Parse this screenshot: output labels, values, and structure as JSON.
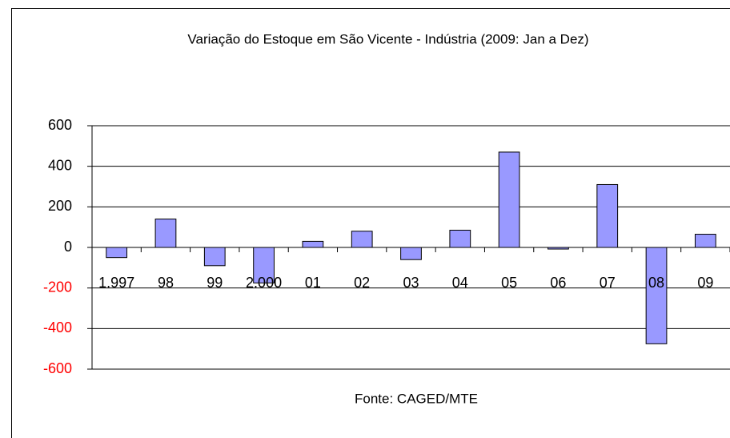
{
  "chart_data": {
    "type": "bar",
    "title": "Variação do Estoque em São Vicente - Indústria (2009: Jan a Dez)",
    "source": "Fonte: CAGED/MTE",
    "categories": [
      "1.997",
      "98",
      "99",
      "2.000",
      "01",
      "02",
      "03",
      "04",
      "05",
      "06",
      "07",
      "08",
      "09"
    ],
    "values": [
      -50,
      140,
      -90,
      -175,
      30,
      80,
      -60,
      85,
      470,
      -8,
      310,
      -475,
      65
    ],
    "color": "#9999ff",
    "ylim": [
      -600,
      600
    ],
    "yticks": [
      -600,
      -400,
      -200,
      0,
      200,
      400,
      600
    ],
    "grid": true,
    "negative_tick_color": "#ff0000"
  }
}
